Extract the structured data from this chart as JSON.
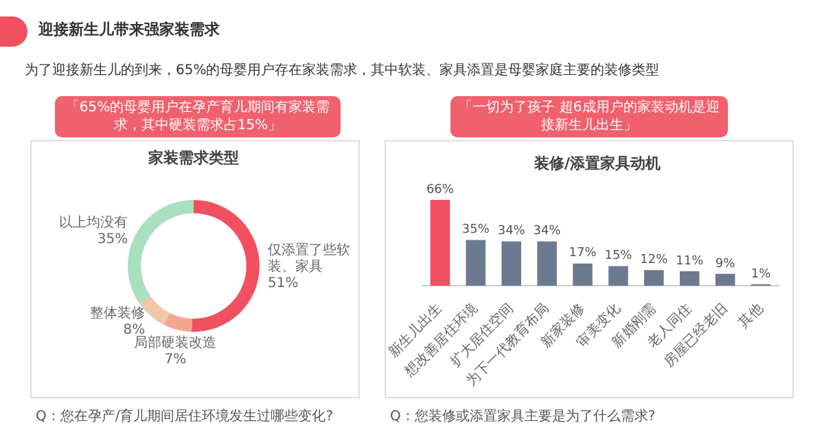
{
  "chart_data": [
    {
      "type": "donut",
      "title": "家装需求类型",
      "categories": [
        "仅添置了些软装、家具",
        "局部硬装改造",
        "整体装修",
        "以上均没有"
      ],
      "values": [
        51,
        7,
        8,
        35
      ],
      "colors": [
        "#f0505f",
        "#f5a58f",
        "#f0c8a8",
        "#a8e0c0"
      ],
      "value_labels": [
        "51%",
        "7%",
        "8%",
        "35%"
      ],
      "annotations": [
        "迎接新生儿带来强家装需求",
        "为了迎接新生儿的到来，65%的母婴用户存在家装需求，其中软装、家具添置是母婴家庭主要的装修类型",
        "「65%的母婴用户在孕产育儿期间有家装需求，其中硬装需求占15%」",
        "Q：您在孕产/育儿期间居住环境发生过哪些变化?"
      ]
    },
    {
      "type": "bar",
      "title": "装修/添置家具动机",
      "categories": [
        "新生儿出生",
        "想改善居住环境",
        "扩大居住空间",
        "为下一代教育布局",
        "新家装修",
        "审美变化",
        "新婚刚需",
        "老人同住",
        "房屋已经老旧",
        "其他"
      ],
      "values": [
        66,
        35,
        34,
        34,
        17,
        15,
        12,
        11,
        9,
        1
      ],
      "colors": [
        "#f0505f",
        "#6b7a8f",
        "#6b7a8f",
        "#6b7a8f",
        "#6b7a8f",
        "#6b7a8f",
        "#6b7a8f",
        "#6b7a8f",
        "#6b7a8f",
        "#6b7a8f"
      ],
      "value_labels": [
        "66%",
        "35%",
        "34%",
        "34%",
        "17%",
        "15%",
        "12%",
        "11%",
        "9%",
        "1%"
      ],
      "annotations": [
        "「一切为了孩子 超6成用户的家装动机是迎接新生儿出生」",
        "Q：您装修或添置家具主要是为了什么需求?"
      ]
    }
  ]
}
